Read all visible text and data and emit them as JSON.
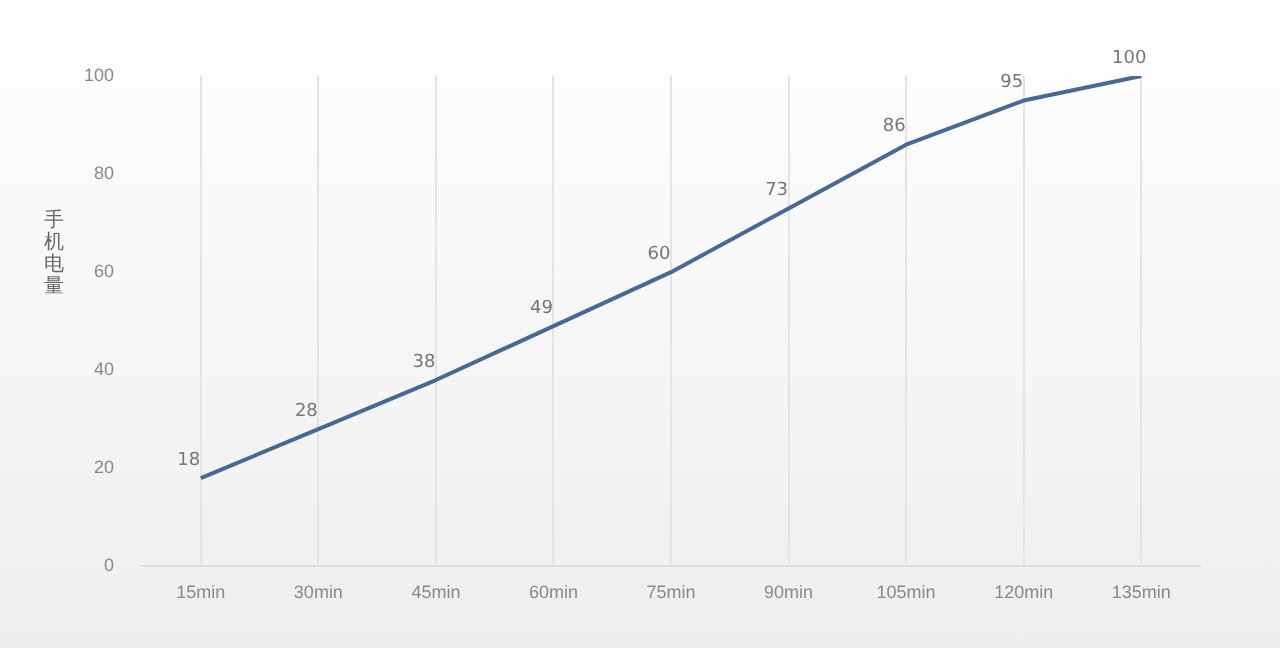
{
  "chart_data": {
    "type": "line",
    "ylabel": "手机电量",
    "categories": [
      "15min",
      "30min",
      "45min",
      "60min",
      "75min",
      "90min",
      "105min",
      "120min",
      "135min"
    ],
    "series": [
      {
        "color": "#4a6895",
        "values": [
          18,
          28,
          38,
          49,
          60,
          73,
          86,
          95,
          100
        ]
      }
    ],
    "ylim": [
      0,
      100
    ],
    "yticks": [
      0,
      20,
      40,
      60,
      80,
      100
    ],
    "grid": "x",
    "legend": false,
    "marker": "none",
    "line_style": "solid",
    "data_labels": true
  }
}
